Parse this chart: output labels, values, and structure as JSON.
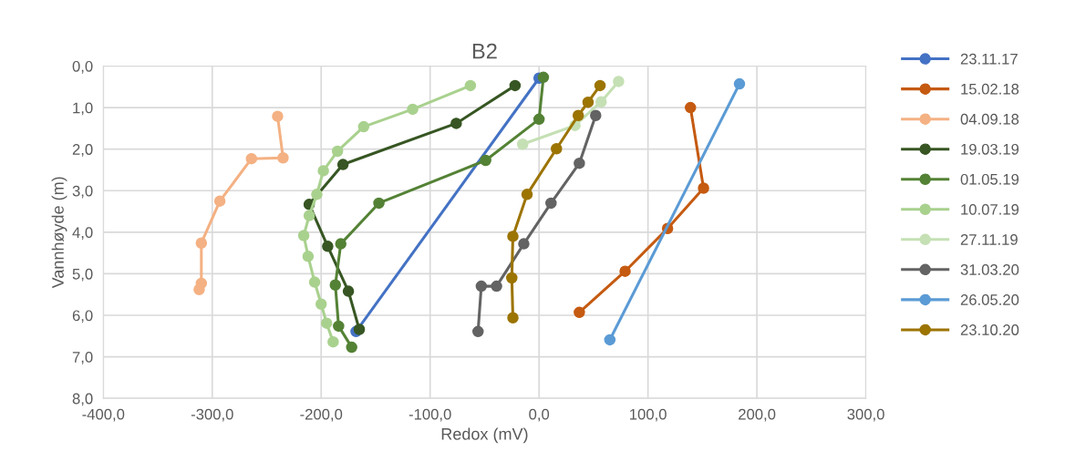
{
  "chart_data": {
    "type": "line",
    "title": "B2",
    "xlabel": "Redox (mV)",
    "ylabel": "Vannhøyde (m)",
    "xlim": [
      -400,
      300
    ],
    "xticks": [
      {
        "value": -400,
        "label": "-400,0"
      },
      {
        "value": -300,
        "label": "-300,0"
      },
      {
        "value": -200,
        "label": "-200,0"
      },
      {
        "value": -100,
        "label": "-100,0"
      },
      {
        "value": 0,
        "label": "0,0"
      },
      {
        "value": 100,
        "label": "100,0"
      },
      {
        "value": 200,
        "label": "200,0"
      },
      {
        "value": 300,
        "label": "300,0"
      }
    ],
    "ylim": [
      8,
      0
    ],
    "yticks": [
      {
        "value": 0,
        "label": "0,0"
      },
      {
        "value": 1,
        "label": "1,0"
      },
      {
        "value": 2,
        "label": "2,0"
      },
      {
        "value": 3,
        "label": "3,0"
      },
      {
        "value": 4,
        "label": "4,0"
      },
      {
        "value": 5,
        "label": "5,0"
      },
      {
        "value": 6,
        "label": "6,0"
      },
      {
        "value": 7,
        "label": "7,0"
      },
      {
        "value": 8,
        "label": "8,0"
      }
    ],
    "grid": true,
    "legend": "right",
    "marker": "circle",
    "line_style": "solid",
    "series": [
      {
        "name": "23.11.17",
        "color": "#4472c4",
        "x": [
          0,
          -168
        ],
        "values": [
          0.29,
          6.39
        ]
      },
      {
        "name": "15.02.18",
        "color": "#c55a11",
        "x": [
          139,
          151,
          118,
          79,
          37
        ],
        "values": [
          1.0,
          2.94,
          3.91,
          4.94,
          5.93
        ]
      },
      {
        "name": "04.09.18",
        "color": "#f4b183",
        "x": [
          -240,
          -235,
          -264,
          -293,
          -310,
          -310,
          -312
        ],
        "values": [
          1.21,
          2.21,
          2.23,
          3.25,
          4.26,
          5.23,
          5.38
        ]
      },
      {
        "name": "19.03.19",
        "color": "#375623",
        "x": [
          -22,
          -76,
          -180,
          -211,
          -194,
          -175,
          -165
        ],
        "values": [
          0.47,
          1.38,
          2.37,
          3.33,
          4.34,
          5.42,
          6.34
        ]
      },
      {
        "name": "01.05.19",
        "color": "#548235",
        "x": [
          4,
          0,
          -49,
          -147,
          -182,
          -187,
          -184,
          -172
        ],
        "values": [
          0.27,
          1.28,
          2.27,
          3.3,
          4.28,
          5.27,
          6.26,
          6.77
        ]
      },
      {
        "name": "10.07.19",
        "color": "#a9d18e",
        "x": [
          -63,
          -116,
          -161,
          -185,
          -198,
          -204,
          -211,
          -216,
          -212,
          -206,
          -200,
          -195,
          -189
        ],
        "values": [
          0.47,
          1.04,
          1.46,
          2.05,
          2.52,
          3.09,
          3.6,
          4.08,
          4.58,
          5.2,
          5.73,
          6.19,
          6.64
        ]
      },
      {
        "name": "27.11.19",
        "color": "#c5e0b4",
        "x": [
          73,
          57,
          33,
          -15
        ],
        "values": [
          0.37,
          0.86,
          1.43,
          1.88
        ]
      },
      {
        "name": "31.03.20",
        "color": "#636363",
        "x": [
          52,
          37,
          11,
          -14,
          -39,
          -53,
          -56
        ],
        "values": [
          1.19,
          2.34,
          3.3,
          4.28,
          5.3,
          5.3,
          6.39
        ]
      },
      {
        "name": "26.05.20",
        "color": "#5b9bd5",
        "x": [
          184,
          65
        ],
        "values": [
          0.43,
          6.59
        ]
      },
      {
        "name": "23.10.20",
        "color": "#9c7400",
        "x": [
          56,
          45,
          36,
          16,
          -11,
          -24,
          -25,
          -24
        ],
        "values": [
          0.47,
          0.87,
          1.19,
          1.99,
          3.09,
          4.1,
          5.1,
          6.06
        ]
      }
    ]
  }
}
